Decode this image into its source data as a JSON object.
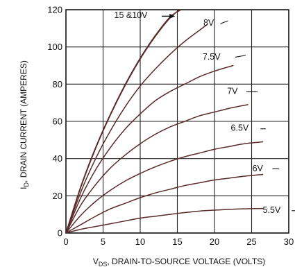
{
  "chart_data": {
    "type": "line",
    "xlabel_sub_prefix": "V",
    "xlabel_sub": "DS",
    "xlabel_rest": ", DRAIN-TO-SOURCE VOLTAGE (VOLTS)",
    "ylabel_prefix": "I",
    "ylabel_sub": "D",
    "ylabel_rest": ", DRAIN CURRENT (AMPERES)",
    "xlim": [
      0,
      30
    ],
    "ylim": [
      0,
      120
    ],
    "x_ticks": [
      "0",
      "5",
      "10",
      "15",
      "20",
      "25",
      "30"
    ],
    "y_ticks": [
      "0",
      "20",
      "40",
      "60",
      "80",
      "100",
      "120"
    ],
    "grid": true,
    "series": [
      {
        "name": "15 &10V",
        "x": [
          0,
          2,
          4,
          6,
          8,
          10,
          12,
          14,
          15.5
        ],
        "y": [
          0,
          25,
          46,
          64,
          80,
          94,
          106,
          116,
          120
        ]
      },
      {
        "name": "15 &10V",
        "x": [
          0,
          2,
          4,
          6,
          8,
          10,
          12,
          14,
          15.3
        ],
        "y": [
          0,
          24.5,
          45.5,
          63.5,
          79.5,
          93.5,
          105.5,
          115.5,
          120
        ]
      },
      {
        "name": "8V",
        "x": [
          0,
          2,
          4,
          6,
          8,
          10,
          12,
          14,
          16,
          18,
          19
        ],
        "y": [
          0,
          22,
          40,
          55,
          68,
          79,
          88,
          96,
          103,
          109,
          112
        ]
      },
      {
        "name": "7.5V",
        "x": [
          0,
          2,
          4,
          6,
          8,
          10,
          12,
          14,
          16,
          18,
          20,
          22.5
        ],
        "y": [
          0,
          19,
          34,
          46,
          56,
          64,
          71,
          76,
          80,
          84,
          87,
          90
        ]
      },
      {
        "name": "7V",
        "x": [
          0,
          2,
          4,
          6,
          8,
          10,
          12,
          14,
          16,
          18,
          20,
          22,
          24.5
        ],
        "y": [
          0,
          15,
          26,
          35,
          42,
          48,
          53,
          57,
          60,
          63,
          65,
          67,
          69
        ]
      },
      {
        "name": "6.5V",
        "x": [
          0,
          2,
          4,
          6,
          8,
          10,
          12,
          14,
          16,
          18,
          20,
          22,
          24,
          26.5
        ],
        "y": [
          0,
          9.5,
          17,
          23,
          28,
          32,
          35.5,
          38.5,
          41,
          43,
          45,
          46.5,
          48,
          49
        ]
      },
      {
        "name": "6V",
        "x": [
          0,
          2,
          4,
          6,
          8,
          10,
          12,
          14,
          16,
          18,
          20,
          22,
          24,
          26.5
        ],
        "y": [
          0,
          4.5,
          9,
          13,
          16,
          19,
          21.5,
          23.5,
          25.5,
          27,
          28.5,
          29.5,
          30.5,
          31.5
        ]
      },
      {
        "name": "5.5V",
        "x": [
          0,
          2,
          4,
          6,
          8,
          10,
          12,
          14,
          16,
          18,
          20,
          22,
          24,
          26.5
        ],
        "y": [
          0,
          2,
          3.5,
          5,
          6.5,
          8,
          9,
          10,
          11,
          11.8,
          12.3,
          12.7,
          13,
          13.2
        ]
      }
    ],
    "annotations": [
      {
        "id": "a15",
        "text": "15 &10V",
        "x": 6.5,
        "y": 115.5,
        "arrow": true,
        "arrow_from": 12.9,
        "arrow_to": 14.7,
        "arrow_y": 116.5
      },
      {
        "id": "a8",
        "text": "8V",
        "x": 18.5,
        "y": 111.5,
        "leader": [
          [
            20.8,
            112.5
          ],
          [
            21.8,
            114
          ]
        ]
      },
      {
        "id": "a75",
        "text": "7.5V",
        "x": 18.4,
        "y": 93.2,
        "leader": [
          [
            22.8,
            94.5
          ],
          [
            24.2,
            95.5
          ]
        ]
      },
      {
        "id": "a7",
        "text": "7V",
        "x": 21.7,
        "y": 74.8,
        "leader": [
          [
            24.3,
            76
          ],
          [
            25.8,
            76
          ]
        ]
      },
      {
        "id": "a65",
        "text": "6.5V",
        "x": 22.2,
        "y": 54.9,
        "leader": [
          [
            26.2,
            56
          ],
          [
            26.9,
            56
          ]
        ]
      },
      {
        "id": "a6",
        "text": "6V",
        "x": 25.1,
        "y": 33.2,
        "leader": [
          [
            27.8,
            34.5
          ],
          [
            28.7,
            34.5
          ]
        ]
      },
      {
        "id": "a55",
        "text": "5.5V",
        "x": 26.5,
        "y": 10.9,
        "leader": [
          [
            30.4,
            12
          ],
          [
            31.2,
            12
          ]
        ]
      }
    ]
  }
}
